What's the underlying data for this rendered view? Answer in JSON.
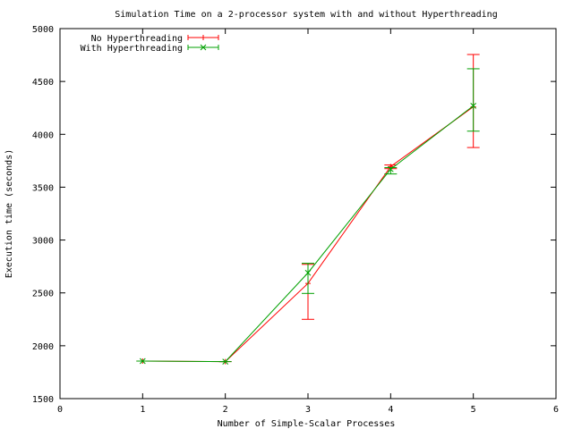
{
  "chart_data": {
    "type": "line",
    "title": "Simulation Time on a 2-processor system with and without Hyperthreading",
    "xlabel": "Number of Simple-Scalar Processes",
    "ylabel": "Execution time (seconds)",
    "xlim": [
      0,
      6
    ],
    "ylim": [
      1500,
      5000
    ],
    "xticks": [
      0,
      1,
      2,
      3,
      4,
      5,
      6
    ],
    "yticks": [
      1500,
      2000,
      2500,
      3000,
      3500,
      4000,
      4500,
      5000
    ],
    "grid": false,
    "legend_position": "top-left",
    "error_bars": true,
    "series": [
      {
        "name": "No Hyperthreading",
        "color": "#ff0000",
        "marker": "plus",
        "x": [
          1,
          2,
          3,
          4,
          5
        ],
        "values": [
          1855,
          1850,
          2590,
          3695,
          4260
        ],
        "error_low": [
          1855,
          1850,
          2250,
          3675,
          3875
        ],
        "error_high": [
          1855,
          1850,
          2770,
          3710,
          4755
        ]
      },
      {
        "name": "With Hyperthreading",
        "color": "#00a000",
        "marker": "cross",
        "x": [
          1,
          2,
          3,
          4,
          5
        ],
        "values": [
          1855,
          1850,
          2690,
          3670,
          4270
        ],
        "error_low": [
          1855,
          1850,
          2495,
          3625,
          4030
        ],
        "error_high": [
          1855,
          1850,
          2780,
          3685,
          4620
        ]
      }
    ]
  }
}
